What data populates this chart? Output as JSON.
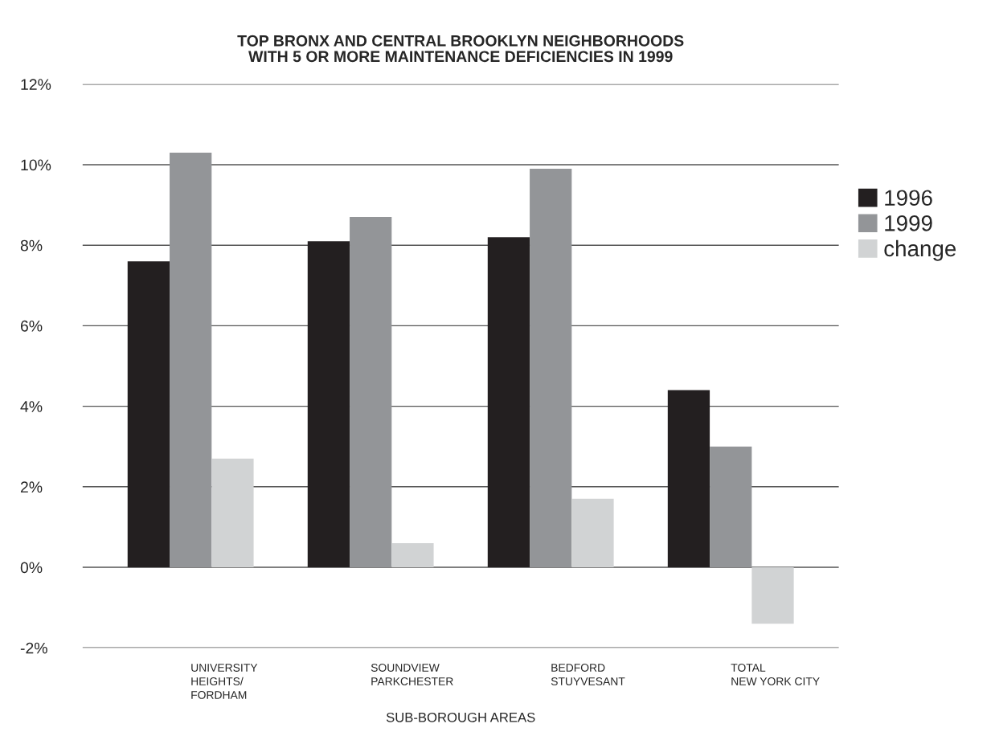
{
  "chart_data": {
    "type": "bar",
    "title": "TOP BRONX AND CENTRAL BROOKLYN NEIGHBORHOODS\nWITH 5 OR MORE MAINTENANCE DEFICIENCIES IN 1999",
    "xlabel": "SUB-BOROUGH AREAS",
    "categories": [
      "UNIVERSITY\nHEIGHTS/\nFORDHAM",
      "SOUNDVIEW\nPARKCHESTER",
      "BEDFORD\nSTUYVESANT",
      "TOTAL\nNEW YORK CITY"
    ],
    "series": [
      {
        "name": "1996",
        "color": "#231f20",
        "values": [
          7.6,
          8.1,
          8.2,
          4.4
        ]
      },
      {
        "name": "1999",
        "color": "#939598",
        "values": [
          10.3,
          8.7,
          9.9,
          3.0
        ]
      },
      {
        "name": "change",
        "color": "#d1d3d4",
        "values": [
          2.7,
          0.6,
          1.7,
          -1.4
        ]
      }
    ],
    "ylim": [
      -2,
      12
    ],
    "yticks": [
      {
        "value": -2,
        "label": "-2%"
      },
      {
        "value": 0,
        "label": "0%"
      },
      {
        "value": 2,
        "label": "2%"
      },
      {
        "value": 4,
        "label": "4%"
      },
      {
        "value": 6,
        "label": "6%"
      },
      {
        "value": 8,
        "label": "8%"
      },
      {
        "value": 10,
        "label": "10%"
      },
      {
        "value": 12,
        "label": "12%"
      }
    ],
    "grid": "y",
    "legend": "right"
  }
}
